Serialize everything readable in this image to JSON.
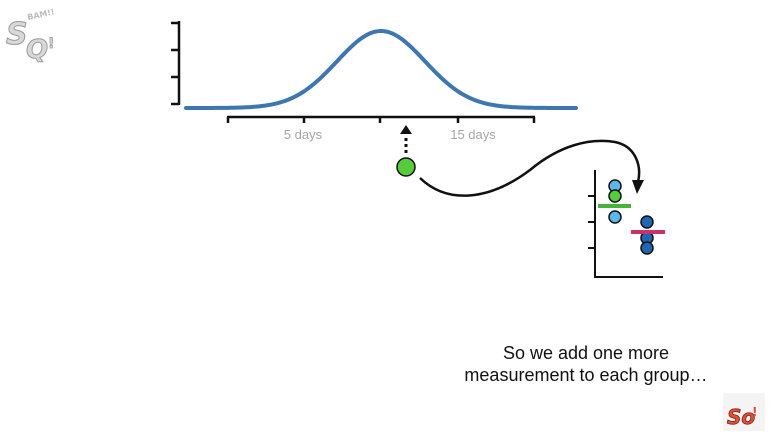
{
  "logo": {
    "text_main": "So",
    "text_mark": "!",
    "small_text": "BAM!!"
  },
  "axis": {
    "tick_labels": [
      "5 days",
      "15 days"
    ]
  },
  "caption": {
    "line1": "So we add one more",
    "line2": "measurement to each group…"
  },
  "colors": {
    "curve": "#3d76b0",
    "green_dot": "#55cc3a",
    "light_blue": "#5cb8ea",
    "dark_blue": "#1f66b3",
    "green_mean": "#44b43a",
    "pink_mean": "#c8326d",
    "axis_gray": "#999999"
  },
  "groups": [
    {
      "name": "",
      "color_key": "light_blue",
      "count": 3,
      "mean_color_key": "green_mean"
    },
    {
      "name": "",
      "color_key": "dark_blue",
      "count": 3,
      "mean_color_key": "pink_mean"
    }
  ]
}
